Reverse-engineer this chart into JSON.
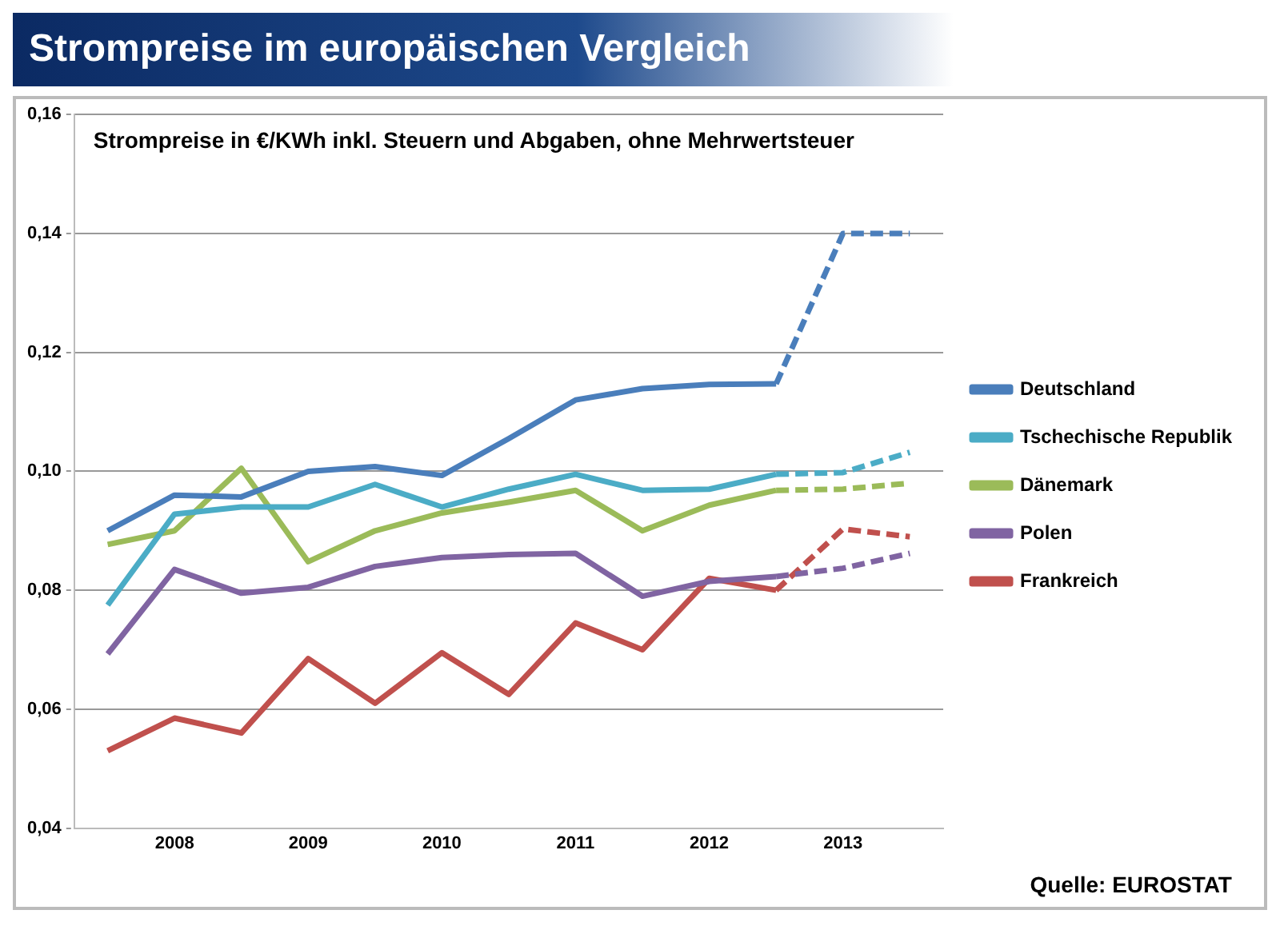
{
  "chart_data": {
    "type": "line",
    "title": "Strompreise im europäischen Vergleich",
    "subtitle": "Strompreise in €/KWh inkl. Steuern und Abgaben, ohne Mehrwertsteuer",
    "categories": [
      null,
      "2008",
      null,
      "2009",
      null,
      "2010",
      null,
      "2011",
      null,
      "2012",
      null,
      "2013",
      null
    ],
    "ylim": [
      0.04,
      0.16
    ],
    "yticks": [
      {
        "value": 0.04,
        "label": "0,04"
      },
      {
        "value": 0.06,
        "label": "0,06"
      },
      {
        "value": 0.08,
        "label": "0,08"
      },
      {
        "value": 0.1,
        "label": "0,10"
      },
      {
        "value": 0.12,
        "label": "0,12"
      },
      {
        "value": 0.14,
        "label": "0,14"
      },
      {
        "value": 0.16,
        "label": "0,16"
      }
    ],
    "grid": "y",
    "legend": "right",
    "line_style": "solid",
    "annotations": [
      "Quelle: EUROSTAT"
    ],
    "series": [
      {
        "name": "Deutschland",
        "color": "#4a7ebb",
        "values": [
          0.09,
          0.096,
          0.0957,
          0.1,
          0.1008,
          0.0993,
          0.1055,
          0.112,
          0.1139,
          0.1146,
          0.1147,
          null,
          null
        ]
      },
      {
        "name": "Tschechische Republik",
        "color": "#4bacc6",
        "values": [
          0.0775,
          0.0928,
          0.094,
          0.094,
          0.0978,
          0.094,
          0.097,
          0.0995,
          0.0968,
          0.097,
          0.0995,
          null,
          null
        ]
      },
      {
        "name": "Dänemark",
        "color": "#9bbb59",
        "values": [
          0.0877,
          0.09,
          0.1005,
          0.0848,
          0.09,
          0.093,
          0.0948,
          0.0968,
          0.09,
          0.0943,
          0.0968,
          null,
          null
        ]
      },
      {
        "name": "Polen",
        "color": "#8064a2",
        "values": [
          0.0693,
          0.0835,
          0.0795,
          0.0805,
          0.084,
          0.0855,
          0.086,
          0.0862,
          0.079,
          0.0815,
          0.0823,
          null,
          null
        ]
      },
      {
        "name": "Frankreich",
        "color": "#c0504d",
        "values": [
          0.053,
          0.0585,
          0.056,
          0.0685,
          0.061,
          0.0695,
          0.0625,
          0.0745,
          0.07,
          0.082,
          0.08,
          null,
          null
        ]
      },
      {
        "color": "#4a7ebb",
        "line_style": "dashed",
        "values": [
          null,
          null,
          null,
          null,
          null,
          null,
          null,
          null,
          null,
          null,
          0.1147,
          0.14,
          0.14
        ]
      },
      {
        "color": "#4bacc6",
        "line_style": "dashed",
        "values": [
          null,
          null,
          null,
          null,
          null,
          null,
          null,
          null,
          null,
          null,
          0.0995,
          0.0998,
          0.1032
        ]
      },
      {
        "color": "#9bbb59",
        "line_style": "dashed",
        "values": [
          null,
          null,
          null,
          null,
          null,
          null,
          null,
          null,
          null,
          null,
          0.0968,
          0.097,
          0.098
        ]
      },
      {
        "color": "#8064a2",
        "line_style": "dashed",
        "values": [
          null,
          null,
          null,
          null,
          null,
          null,
          null,
          null,
          null,
          null,
          0.0823,
          0.0837,
          0.0862
        ]
      },
      {
        "color": "#c0504d",
        "line_style": "dashed",
        "values": [
          null,
          null,
          null,
          null,
          null,
          null,
          null,
          null,
          null,
          null,
          0.08,
          0.0903,
          0.089
        ]
      }
    ]
  }
}
